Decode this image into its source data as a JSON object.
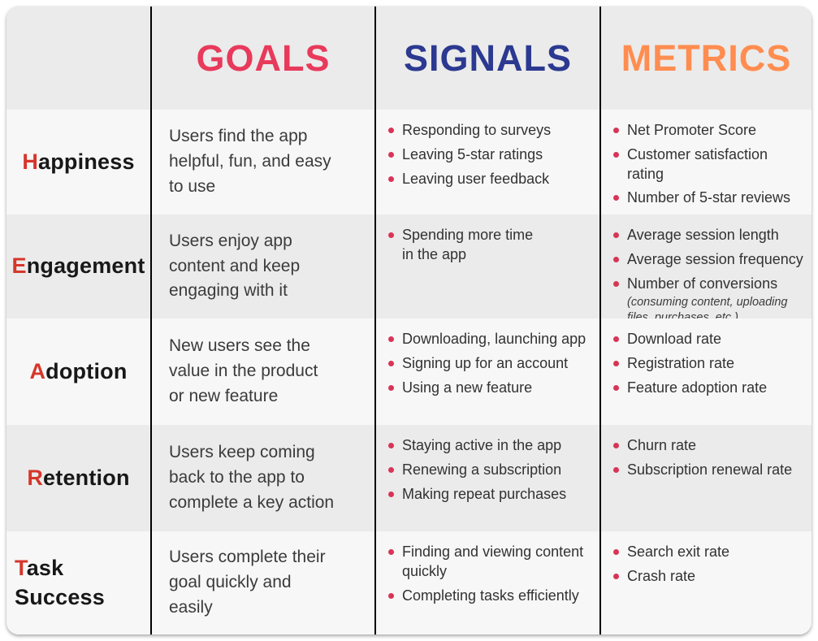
{
  "colors": {
    "goals_header": "#e83a5b",
    "signals_header": "#2b3990",
    "metrics_header": "#ff8d50",
    "category_first_letter": "#d6362b",
    "bullet_dot": "#d93456",
    "row_light_bg": "#f7f7f7",
    "row_gray_bg": "#ebebeb"
  },
  "header": {
    "goals_label": "GOALS",
    "signals_label": "SIGNALS",
    "metrics_label": "METRICS"
  },
  "rows": [
    {
      "category": "Happiness",
      "goal": "Users find the app\nhelpful, fun, and easy\nto use",
      "signals": [
        {
          "text": "Responding to surveys"
        },
        {
          "text": "Leaving 5-star ratings"
        },
        {
          "text": "Leaving user feedback"
        }
      ],
      "metrics": [
        {
          "text": "Net Promoter Score"
        },
        {
          "text": "Customer satisfaction rating"
        },
        {
          "text": "Number of 5-star reviews"
        }
      ]
    },
    {
      "category": "Engagement",
      "goal": "Users enjoy app\ncontent and keep\nengaging with it",
      "signals": [
        {
          "text": "Spending more time\nin the app"
        }
      ],
      "metrics": [
        {
          "text": "Average session length"
        },
        {
          "text": "Average session frequency"
        },
        {
          "text": "Number of conversions",
          "note": "(consuming content, uploading\nfiles, purchases, etc.)"
        }
      ]
    },
    {
      "category": "Adoption",
      "goal": "New users see the\nvalue in the product\nor new feature",
      "signals": [
        {
          "text": "Downloading, launching app"
        },
        {
          "text": "Signing up for an account"
        },
        {
          "text": "Using a new feature"
        }
      ],
      "metrics": [
        {
          "text": "Download rate"
        },
        {
          "text": "Registration rate"
        },
        {
          "text": "Feature adoption rate"
        }
      ]
    },
    {
      "category": "Retention",
      "goal": "Users keep coming\nback to the app to\ncomplete a key action",
      "signals": [
        {
          "text": "Staying active in the app"
        },
        {
          "text": "Renewing a subscription"
        },
        {
          "text": "Making repeat purchases"
        }
      ],
      "metrics": [
        {
          "text": "Churn rate"
        },
        {
          "text": "Subscription renewal rate"
        }
      ]
    },
    {
      "category": "Task Success",
      "goal": "Users complete their\ngoal quickly and\neasily",
      "signals": [
        {
          "text": "Finding and viewing content\nquickly"
        },
        {
          "text": "Completing tasks efficiently"
        }
      ],
      "metrics": [
        {
          "text": "Search exit rate"
        },
        {
          "text": "Crash rate"
        }
      ]
    }
  ]
}
